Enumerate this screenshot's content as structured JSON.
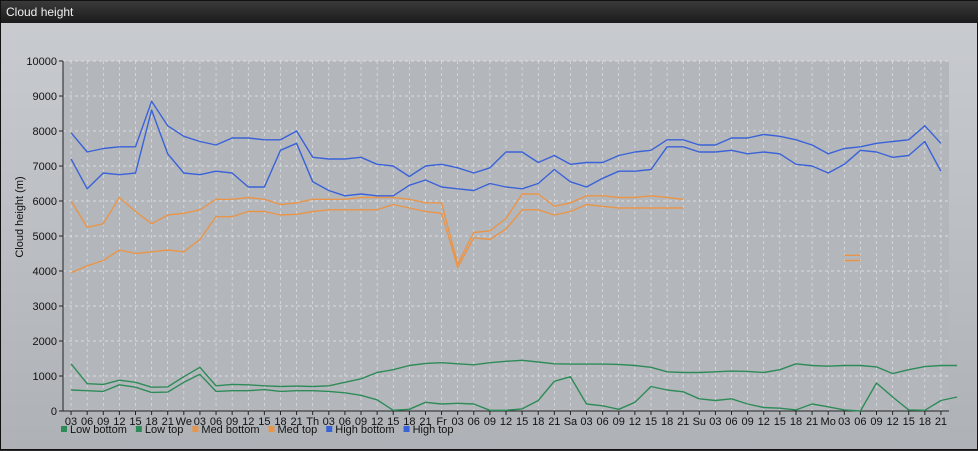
{
  "window": {
    "title": "Cloud height"
  },
  "colors": {
    "low": "#2e8b57",
    "med": "#e8954a",
    "high": "#3a62d8",
    "grid": "#e6e8ea",
    "plot_bg": "#b3b7bc"
  },
  "chart_data": {
    "type": "line",
    "ylabel": "Cloud height (m)",
    "ylim": [
      0,
      10000
    ],
    "yticks": [
      0,
      1000,
      2000,
      3000,
      4000,
      5000,
      6000,
      7000,
      8000,
      9000,
      10000
    ],
    "x_tick_labels": [
      "03",
      "06",
      "09",
      "12",
      "15",
      "18",
      "21",
      "We",
      "03",
      "06",
      "09",
      "12",
      "15",
      "18",
      "21",
      "Th",
      "03",
      "06",
      "09",
      "12",
      "15",
      "18",
      "21",
      "Fr",
      "03",
      "06",
      "09",
      "12",
      "15",
      "18",
      "21",
      "Sa",
      "03",
      "06",
      "09",
      "12",
      "15",
      "18",
      "21",
      "Su",
      "03",
      "06",
      "09",
      "12",
      "15",
      "18",
      "21",
      "Mo",
      "03",
      "06",
      "09",
      "12",
      "15",
      "18",
      "21"
    ],
    "grid": true,
    "legend_position": "bottom-left",
    "series": [
      {
        "name": "Low bottom",
        "color_key": "low",
        "values": [
          600,
          580,
          560,
          750,
          680,
          530,
          540,
          820,
          1050,
          560,
          580,
          580,
          610,
          560,
          580,
          580,
          560,
          520,
          450,
          320,
          20,
          50,
          250,
          200,
          220,
          200,
          20,
          20,
          60,
          300,
          850,
          980,
          200,
          150,
          50,
          250,
          700,
          600,
          550,
          350,
          300,
          350,
          200,
          100,
          80,
          30,
          200,
          120,
          30,
          0,
          800,
          400,
          30,
          20,
          300,
          400
        ]
      },
      {
        "name": "Low top",
        "color_key": "low",
        "values": [
          1350,
          780,
          760,
          880,
          820,
          680,
          690,
          980,
          1250,
          720,
          760,
          750,
          720,
          700,
          710,
          700,
          720,
          820,
          920,
          1100,
          1180,
          1300,
          1360,
          1380,
          1350,
          1320,
          1380,
          1420,
          1450,
          1400,
          1350,
          1340,
          1340,
          1340,
          1330,
          1300,
          1250,
          1120,
          1100,
          1100,
          1120,
          1140,
          1130,
          1100,
          1180,
          1350,
          1300,
          1280,
          1300,
          1300,
          1260,
          1070,
          1180,
          1270,
          1300,
          1300
        ]
      },
      {
        "name": "Med bottom",
        "color_key": "med",
        "values": [
          3950,
          4150,
          4300,
          4600,
          4500,
          4550,
          4600,
          4550,
          4900,
          5550,
          5550,
          5700,
          5700,
          5600,
          5620,
          5700,
          5750,
          5750,
          5750,
          5750,
          5900,
          5800,
          5700,
          5650,
          4100,
          4950,
          4900,
          5200,
          5750,
          5750,
          5600,
          5700,
          5900,
          5850,
          5800,
          5800,
          5800,
          5800,
          5800,
          null,
          null,
          null,
          null,
          null,
          null,
          null,
          null,
          null,
          4300,
          4300,
          null,
          null,
          null,
          null,
          null,
          null
        ]
      },
      {
        "name": "Med top",
        "color_key": "med",
        "values": [
          6000,
          5250,
          5350,
          6100,
          5700,
          5350,
          5600,
          5650,
          5750,
          6050,
          6050,
          6100,
          6050,
          5900,
          5950,
          6050,
          6050,
          6050,
          6100,
          6100,
          6100,
          6050,
          5950,
          5950,
          4200,
          5100,
          5150,
          5500,
          6200,
          6200,
          5850,
          5950,
          6150,
          6150,
          6100,
          6100,
          6150,
          6100,
          6050,
          null,
          null,
          null,
          null,
          null,
          null,
          null,
          null,
          null,
          4450,
          4450,
          null,
          null,
          null,
          null,
          null,
          null
        ]
      },
      {
        "name": "High bottom",
        "color_key": "high",
        "values": [
          7200,
          6350,
          6800,
          6750,
          6800,
          8600,
          7350,
          6800,
          6750,
          6850,
          6800,
          6400,
          6400,
          7450,
          7650,
          6550,
          6300,
          6150,
          6200,
          6150,
          6150,
          6450,
          6600,
          6400,
          6350,
          6300,
          6500,
          6400,
          6350,
          6500,
          6900,
          6550,
          6400,
          6650,
          6850,
          6850,
          6900,
          7550,
          7550,
          7400,
          7400,
          7450,
          7350,
          7400,
          7350,
          7050,
          7000,
          6800,
          7050,
          7450,
          7400,
          7250,
          7300,
          7700,
          6850,
          null
        ]
      },
      {
        "name": "High top",
        "color_key": "high",
        "values": [
          7950,
          7400,
          7500,
          7550,
          7550,
          8850,
          8150,
          7850,
          7700,
          7600,
          7800,
          7800,
          7750,
          7750,
          8000,
          7250,
          7200,
          7200,
          7250,
          7050,
          7000,
          6700,
          7000,
          7050,
          6950,
          6800,
          6950,
          7400,
          7400,
          7100,
          7300,
          7050,
          7100,
          7100,
          7300,
          7400,
          7450,
          7750,
          7750,
          7600,
          7600,
          7800,
          7800,
          7900,
          7850,
          7750,
          7600,
          7350,
          7500,
          7550,
          7650,
          7700,
          7750,
          8150,
          7650,
          null
        ]
      }
    ]
  }
}
